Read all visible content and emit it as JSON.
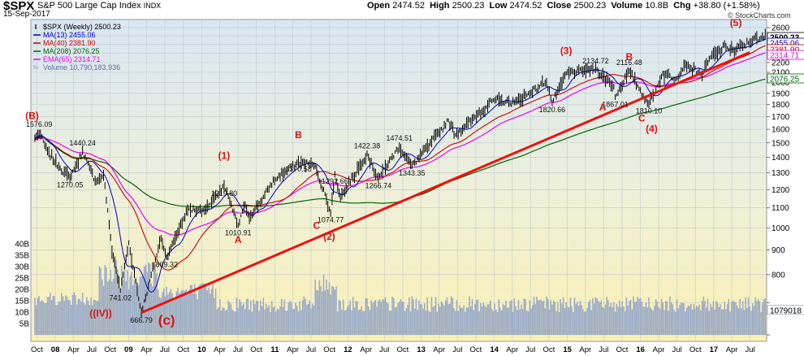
{
  "header": {
    "ticker": "$SPX",
    "name": "S&P 500 Large Cap Index",
    "exchange": "INDX",
    "date": "15-Sep-2017",
    "open_label": "Open",
    "open": "2474.52",
    "high_label": "High",
    "high": "2500.23",
    "low_label": "Low",
    "low": "2474.52",
    "close_label": "Close",
    "close": "2500.23",
    "volume_label": "Volume",
    "volume": "10.8B",
    "chg_label": "Chg",
    "chg": "+38.80 (+1.58%)",
    "brand": "© StockCharts.com"
  },
  "chart_data": {
    "type": "line",
    "x_ticks": [
      "Oct",
      "08",
      "Apr",
      "Jul",
      "Oct",
      "09",
      "Apr",
      "Jul",
      "Oct",
      "10",
      "Apr",
      "Jul",
      "Oct",
      "11",
      "Apr",
      "Jul",
      "Oct",
      "12",
      "Apr",
      "Jul",
      "Oct",
      "13",
      "Apr",
      "Jul",
      "Oct",
      "14",
      "Apr",
      "Jul",
      "Oct",
      "15",
      "Apr",
      "Jul",
      "Oct",
      "16",
      "Apr",
      "Jul",
      "Oct",
      "17",
      "Apr",
      "Jul"
    ],
    "y_ticks": [
      600,
      700,
      800,
      900,
      1000,
      1100,
      1200,
      1300,
      1400,
      1500,
      1600,
      1700,
      1800,
      1900,
      2000,
      2100,
      2200,
      2300,
      2400,
      2500,
      2600
    ],
    "y_tick_labels": [
      "",
      "",
      "800",
      "900",
      "1000",
      "1100",
      "1200",
      "1300",
      "1400",
      "1500",
      "1600",
      "1700",
      "1800",
      "1900",
      "2000",
      "2100",
      "2200",
      "2300",
      "2400",
      "2500",
      "2600"
    ],
    "ylim": [
      600,
      2640
    ],
    "y_scale": "log",
    "vol_ticks": [
      "5B",
      "10B",
      "15B",
      "20B",
      "25B",
      "30B",
      "35B",
      "40B"
    ],
    "price_key_points": [
      [
        "2007-09-21",
        1530
      ],
      [
        "2007-10-12",
        1576.09
      ],
      [
        "2007-11-23",
        1440
      ],
      [
        "2008-01-25",
        1330
      ],
      [
        "2008-03-14",
        1270.05
      ],
      [
        "2008-05-16",
        1440.24
      ],
      [
        "2008-07-18",
        1250
      ],
      [
        "2008-08-29",
        1290
      ],
      [
        "2008-10-10",
        900
      ],
      [
        "2008-11-21",
        741.02
      ],
      [
        "2009-01-02",
        930
      ],
      [
        "2009-03-06",
        666.79
      ],
      [
        "2009-06-12",
        950
      ],
      [
        "2009-07-10",
        869.32
      ],
      [
        "2009-10-23",
        1090
      ],
      [
        "2010-01-22",
        1090
      ],
      [
        "2010-04-23",
        1219.8
      ],
      [
        "2010-07-02",
        1010.91
      ],
      [
        "2010-08-06",
        1120
      ],
      [
        "2010-08-27",
        1050
      ],
      [
        "2010-12-31",
        1257
      ],
      [
        "2011-04-29",
        1370.58
      ],
      [
        "2011-07-22",
        1345
      ],
      [
        "2011-10-07",
        1074.77
      ],
      [
        "2011-10-28",
        1292.66
      ],
      [
        "2011-11-25",
        1158
      ],
      [
        "2012-04-06",
        1422.38
      ],
      [
        "2012-06-01",
        1266.74
      ],
      [
        "2012-09-14",
        1474.51
      ],
      [
        "2012-11-16",
        1343.35
      ],
      [
        "2013-05-17",
        1667
      ],
      [
        "2013-06-21",
        1560
      ],
      [
        "2013-12-27",
        1841
      ],
      [
        "2014-04-11",
        1815
      ],
      [
        "2014-09-19",
        2010
      ],
      [
        "2014-10-17",
        1820.66
      ],
      [
        "2014-12-26",
        2088
      ],
      [
        "2015-05-22",
        2134.72
      ],
      [
        "2015-08-21",
        1970
      ],
      [
        "2015-08-28",
        1867.01
      ],
      [
        "2015-11-06",
        2116.48
      ],
      [
        "2016-01-15",
        1880
      ],
      [
        "2016-02-12",
        1810.1
      ],
      [
        "2016-04-22",
        2091
      ],
      [
        "2016-06-24",
        2037
      ],
      [
        "2016-08-12",
        2184
      ],
      [
        "2016-11-04",
        2085
      ],
      [
        "2016-12-16",
        2258
      ],
      [
        "2017-03-03",
        2383
      ],
      [
        "2017-04-14",
        2329
      ],
      [
        "2017-08-04",
        2476
      ],
      [
        "2017-08-11",
        2441
      ],
      [
        "2017-09-15",
        2500.23
      ]
    ],
    "series": [
      {
        "name": "$SPX (Weekly) 2500.23",
        "color": "#000000"
      },
      {
        "name": "MA(13) 2455.06",
        "color": "#0000cc"
      },
      {
        "name": "MA(40) 2381.90",
        "color": "#cc0000"
      },
      {
        "name": "MA(208) 2076.25",
        "color": "#006600"
      },
      {
        "name": "EMA(65) 2314.71",
        "color": "#ee00ee"
      },
      {
        "name": "Volume 10,790,183,936",
        "color": "#9aaac7"
      }
    ],
    "last_value_labels": [
      {
        "label": "2500.23",
        "value": 2500.23,
        "color": "#000000"
      },
      {
        "label": "2455.06",
        "value": 2455.06,
        "color": "#0000cc"
      },
      {
        "label": "2381.90",
        "value": 2381.9,
        "color": "#cc0000"
      },
      {
        "label": "2314.71",
        "value": 2314.71,
        "color": "#ee00ee"
      },
      {
        "label": "2076.25",
        "value": 2076.25,
        "color": "#006600"
      }
    ],
    "volume_last_label": "1079018",
    "price_annotations": [
      {
        "label": "1576.09",
        "date": "2007-10-12",
        "value": 1576.09
      },
      {
        "label": "1440.24",
        "date": "2008-05-16",
        "value": 1440.24
      },
      {
        "label": "1270.05",
        "date": "2008-03-14",
        "value": 1270.05
      },
      {
        "label": "741.02",
        "date": "2008-11-21",
        "value": 741.02
      },
      {
        "label": "666.79",
        "date": "2009-03-06",
        "value": 666.79
      },
      {
        "label": "869.32",
        "date": "2009-07-10",
        "value": 869.32
      },
      {
        "label": "1219.80",
        "date": "2010-04-23",
        "value": 1219.8
      },
      {
        "label": "1010.91",
        "date": "2010-07-02",
        "value": 1010.91
      },
      {
        "label": "1370.58",
        "date": "2011-04-29",
        "value": 1370.58
      },
      {
        "label": "1292.66",
        "date": "2011-10-28",
        "value": 1292.66
      },
      {
        "label": "1074.77",
        "date": "2011-10-07",
        "value": 1074.77
      },
      {
        "label": "1422.38",
        "date": "2012-04-06",
        "value": 1422.38
      },
      {
        "label": "1266.74",
        "date": "2012-06-01",
        "value": 1266.74
      },
      {
        "label": "1474.51",
        "date": "2012-09-14",
        "value": 1474.51
      },
      {
        "label": "1343.35",
        "date": "2012-11-16",
        "value": 1343.35
      },
      {
        "label": "1820.66",
        "date": "2014-10-17",
        "value": 1820.66
      },
      {
        "label": "2134.72",
        "date": "2015-05-22",
        "value": 2134.72
      },
      {
        "label": "2116.48",
        "date": "2015-11-06",
        "value": 2116.48
      },
      {
        "label": "1867.01",
        "date": "2015-08-28",
        "value": 1867.01
      },
      {
        "label": "1810.10",
        "date": "2016-02-12",
        "value": 1810.1
      }
    ],
    "wave_labels": [
      {
        "label": "(B)",
        "date": "2007-09-07",
        "value": 1680
      },
      {
        "label": "((IV))",
        "date": "2008-08-15",
        "value": 655
      },
      {
        "label": "(c)",
        "date": "2009-07-10",
        "value": 630
      },
      {
        "label": "(1)",
        "date": "2010-04-23",
        "value": 1390
      },
      {
        "label": "A",
        "date": "2010-07-02",
        "value": 930
      },
      {
        "label": "B",
        "date": "2011-04-29",
        "value": 1535
      },
      {
        "label": "C",
        "date": "2011-07-29",
        "value": 995
      },
      {
        "label": "(2)",
        "date": "2011-09-30",
        "value": 945
      },
      {
        "label": "(3)",
        "date": "2014-12-26",
        "value": 2290
      },
      {
        "label": "A",
        "date": "2015-06-26",
        "value": 1750
      },
      {
        "label": "B",
        "date": "2015-11-06",
        "value": 2225
      },
      {
        "label": "C",
        "date": "2016-01-08",
        "value": 1660
      },
      {
        "label": "(4)",
        "date": "2016-02-26",
        "value": 1580
      },
      {
        "label": "(5)",
        "date": "2017-04-21",
        "value": 2620
      }
    ],
    "trendline": {
      "from": {
        "date": "2009-03-06",
        "value": 666.79
      },
      "to": {
        "date": "2017-06-30",
        "value": 2310
      },
      "color": "#ee1111"
    },
    "grid": true
  }
}
